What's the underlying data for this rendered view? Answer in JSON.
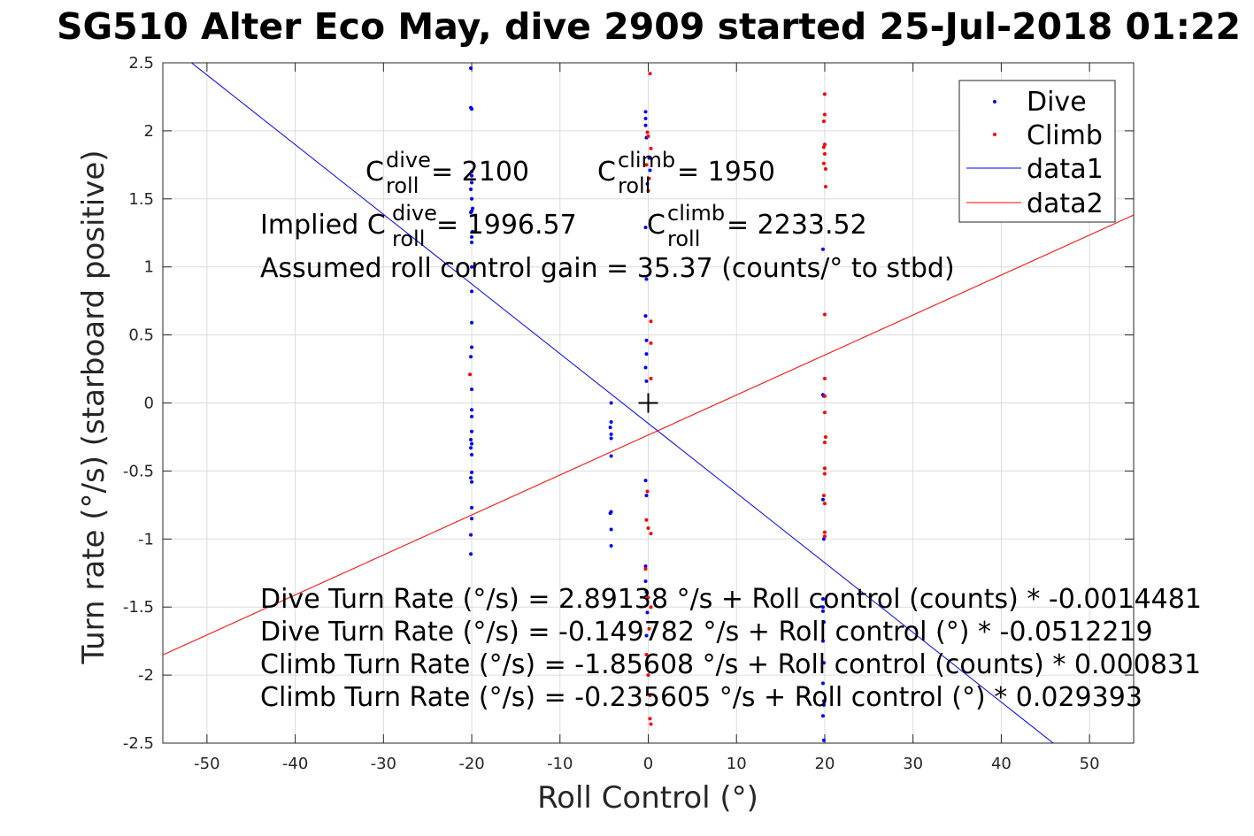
{
  "chart_data": {
    "type": "scatter",
    "title": "SG510 Alter Eco May, dive 2909 started 25-Jul-2018 01:22",
    "xlabel": "Roll Control (°)",
    "ylabel": "Turn rate (°/s) (starboard positive)",
    "xlim": [
      -55,
      55
    ],
    "ylim": [
      -2.5,
      2.5
    ],
    "xticks": [
      -50,
      -40,
      -30,
      -20,
      -10,
      0,
      10,
      20,
      30,
      40,
      50
    ],
    "xtick_labels": [
      "-50",
      "-40",
      "-30",
      "-20",
      "-10",
      "0",
      "10",
      "20",
      "30",
      "40",
      "50"
    ],
    "yticks": [
      -2.5,
      -2,
      -1.5,
      -1,
      -0.5,
      0,
      0.5,
      1,
      1.5,
      2,
      2.5
    ],
    "ytick_labels": [
      "-2.5",
      "-2",
      "-1.5",
      "-1",
      "-0.5",
      "0",
      "0.5",
      "1",
      "1.5",
      "2",
      "2.5"
    ],
    "grid": true,
    "legend_position": "top-right",
    "colors": {
      "dive": "#0000ff",
      "climb": "#ff0000",
      "marker": "#000000"
    },
    "series": [
      {
        "name": "Dive",
        "kind": "points",
        "color": "#0000ff",
        "points": [
          [
            -20.1,
            2.46
          ],
          [
            -20.1,
            2.17
          ],
          [
            -20.0,
            2.16
          ],
          [
            -20.0,
            1.7
          ],
          [
            -20.0,
            1.67
          ],
          [
            -20.0,
            1.62
          ],
          [
            -20.1,
            1.57
          ],
          [
            -20.0,
            1.5
          ],
          [
            -19.9,
            1.43
          ],
          [
            -20.0,
            1.41
          ],
          [
            -20.1,
            1.4
          ],
          [
            -19.9,
            1.26
          ],
          [
            -20.0,
            1.22
          ],
          [
            -20.0,
            1.18
          ],
          [
            -20.0,
            1.0
          ],
          [
            -20.0,
            0.82
          ],
          [
            -20.0,
            0.59
          ],
          [
            -20.0,
            0.41
          ],
          [
            -20.1,
            0.34
          ],
          [
            -20.0,
            0.1
          ],
          [
            -20.0,
            -0.05
          ],
          [
            -20.0,
            -0.1
          ],
          [
            -20.0,
            -0.21
          ],
          [
            -20.1,
            -0.27
          ],
          [
            -20.0,
            -0.3
          ],
          [
            -20.1,
            -0.33
          ],
          [
            -20.0,
            -0.38
          ],
          [
            -20.0,
            -0.51
          ],
          [
            -20.1,
            -0.55
          ],
          [
            -20.0,
            -0.58
          ],
          [
            -20.0,
            -0.77
          ],
          [
            -20.0,
            -0.85
          ],
          [
            -20.1,
            -0.97
          ],
          [
            -20.1,
            -1.11
          ],
          [
            -4.2,
            0.0
          ],
          [
            -4.2,
            -0.14
          ],
          [
            -4.3,
            -0.18
          ],
          [
            -4.2,
            -0.23
          ],
          [
            -4.2,
            -0.26
          ],
          [
            -4.2,
            -0.39
          ],
          [
            -4.2,
            -0.8
          ],
          [
            -4.3,
            -0.81
          ],
          [
            -4.2,
            -0.93
          ],
          [
            -4.2,
            -1.05
          ],
          [
            -0.3,
            2.14
          ],
          [
            -0.3,
            2.09
          ],
          [
            -0.3,
            2.04
          ],
          [
            -0.2,
            1.95
          ],
          [
            0.1,
            1.8
          ],
          [
            0.2,
            1.71
          ],
          [
            -0.1,
            1.61
          ],
          [
            -0.3,
            1.29
          ],
          [
            -0.2,
            0.91
          ],
          [
            -0.3,
            0.64
          ],
          [
            -0.2,
            0.46
          ],
          [
            -0.2,
            0.36
          ],
          [
            -0.3,
            0.26
          ],
          [
            -0.2,
            0.16
          ],
          [
            -0.3,
            -0.57
          ],
          [
            -0.2,
            -0.68
          ],
          [
            -0.3,
            -1.2
          ],
          [
            -0.3,
            -1.31
          ],
          [
            -0.2,
            -1.39
          ],
          [
            -0.1,
            -1.54
          ],
          [
            -0.2,
            -1.71
          ],
          [
            19.8,
            1.13
          ],
          [
            19.8,
            0.06
          ],
          [
            19.9,
            0.05
          ],
          [
            19.8,
            -0.71
          ],
          [
            19.9,
            -1.0
          ],
          [
            19.8,
            -1.44
          ],
          [
            19.8,
            -1.5
          ],
          [
            19.8,
            -1.53
          ],
          [
            19.9,
            -1.61
          ],
          [
            19.8,
            -1.75
          ],
          [
            19.9,
            -1.91
          ],
          [
            19.8,
            -2.06
          ],
          [
            19.9,
            -2.19
          ],
          [
            19.9,
            -2.22
          ],
          [
            19.8,
            -2.3
          ],
          [
            19.9,
            -2.48
          ]
        ]
      },
      {
        "name": "Climb",
        "kind": "points",
        "color": "#ff0000",
        "points": [
          [
            0.2,
            2.42
          ],
          [
            -0.1,
            1.99
          ],
          [
            0.0,
            1.96
          ],
          [
            0.3,
            1.87
          ],
          [
            -0.2,
            1.75
          ],
          [
            0.1,
            1.65
          ],
          [
            0.0,
            1.56
          ],
          [
            0.3,
            0.6
          ],
          [
            0.3,
            0.44
          ],
          [
            0.3,
            0.18
          ],
          [
            -0.1,
            -0.65
          ],
          [
            -0.2,
            -0.86
          ],
          [
            0.0,
            -0.92
          ],
          [
            0.3,
            -0.96
          ],
          [
            -0.3,
            -1.22
          ],
          [
            0.0,
            -1.43
          ],
          [
            0.3,
            -1.5
          ],
          [
            0.1,
            -1.66
          ],
          [
            -0.2,
            -1.85
          ],
          [
            0.0,
            -2.0
          ],
          [
            0.2,
            -2.15
          ],
          [
            0.2,
            -2.32
          ],
          [
            0.3,
            -2.36
          ],
          [
            -20.2,
            0.21
          ],
          [
            20.0,
            2.27
          ],
          [
            20.0,
            2.12
          ],
          [
            19.9,
            2.07
          ],
          [
            20.0,
            1.9
          ],
          [
            19.9,
            1.88
          ],
          [
            20.0,
            1.83
          ],
          [
            19.9,
            1.76
          ],
          [
            20.1,
            1.72
          ],
          [
            20.1,
            1.59
          ],
          [
            20.0,
            0.65
          ],
          [
            20.0,
            0.18
          ],
          [
            20.0,
            0.05
          ],
          [
            20.0,
            -0.07
          ],
          [
            20.1,
            -0.25
          ],
          [
            20.0,
            -0.29
          ],
          [
            20.0,
            -0.48
          ],
          [
            20.0,
            -0.52
          ],
          [
            19.9,
            -0.68
          ],
          [
            20.0,
            -0.74
          ],
          [
            20.0,
            -0.95
          ],
          [
            20.0,
            -0.98
          ]
        ]
      },
      {
        "name": "data1",
        "kind": "line",
        "color": "#0000ff",
        "x": [
          -52,
          46
        ],
        "y": [
          2.513,
          -2.506
        ]
      },
      {
        "name": "data2",
        "kind": "line",
        "color": "#ff0000",
        "x": [
          -55,
          55
        ],
        "y": [
          -1.852,
          1.381
        ]
      }
    ],
    "center_marker": {
      "x": 0,
      "y": 0,
      "symbol": "+"
    },
    "annotations": {
      "cdive": {
        "C": "C",
        "sup": "dive",
        "sub": "roll",
        "rest": " = 2100"
      },
      "cclimb": {
        "C": "C",
        "sup": "climb",
        "sub": "roll",
        "rest": " = 1950"
      },
      "implied_dive": {
        "prefix": "Implied C",
        "sup": "dive",
        "sub": "roll",
        "rest": " = 1996.57"
      },
      "implied_climb": {
        "C": "C",
        "sup": "climb",
        "sub": "roll",
        "rest": " = 2233.52"
      },
      "gain": "Assumed roll control gain = 35.37 (counts/° to stbd)",
      "fit_lines": [
        "Dive Turn Rate (°/s) = 2.89138 °/s + Roll control (counts) * -0.0014481",
        "Dive Turn Rate (°/s) = -0.149782 °/s + Roll control (°) * -0.0512219",
        "Climb Turn Rate (°/s) = -1.85608 °/s + Roll control (counts) * 0.000831",
        "Climb Turn Rate (°/s) = -0.235605 °/s + Roll control (°) * 0.029393"
      ]
    }
  }
}
